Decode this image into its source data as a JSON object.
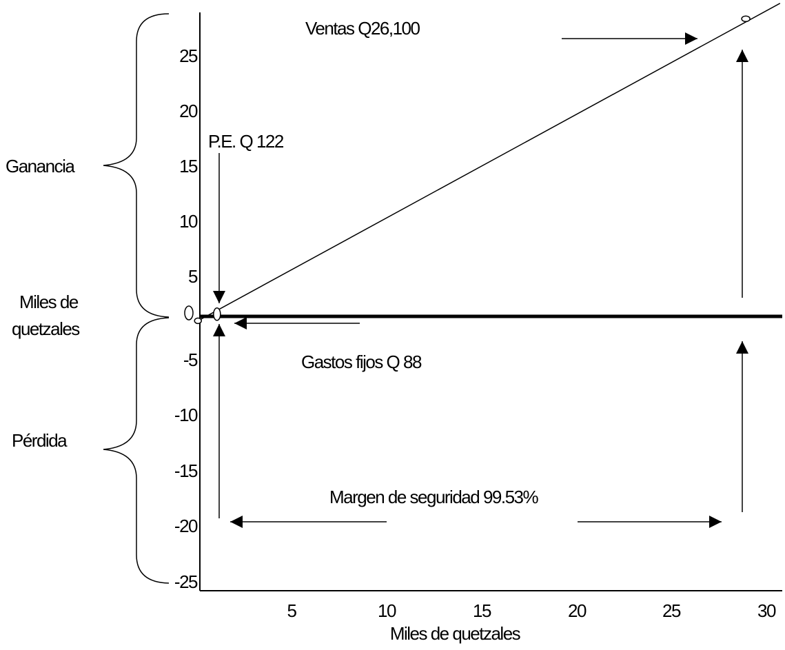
{
  "chart_data": {
    "type": "line",
    "title": "",
    "xlabel": "Miles de quetzales",
    "ylabel": "Miles de quetzales",
    "xlim": [
      0,
      30
    ],
    "ylim": [
      -25,
      28
    ],
    "x_ticks": [
      "5",
      "10",
      "15",
      "20",
      "25",
      "30"
    ],
    "y_ticks": [
      "25",
      "20",
      "15",
      "10",
      "5",
      "0",
      "-5",
      "-10",
      "-15",
      "-20",
      "-25"
    ],
    "grid": false,
    "series": [
      {
        "name": "",
        "points": [
          [
            -0.1,
            -0.4
          ],
          [
            30.5,
            28.3
          ]
        ]
      }
    ],
    "markers": {
      "breakeven": {
        "x": 0.9,
        "y": 0.2
      },
      "sales": {
        "x": 28.7,
        "y": 26.9
      },
      "origin": {
        "x": -0.1,
        "y": -0.4
      }
    },
    "annotations": {
      "ventas": "Ventas Q26,100",
      "pe": "P.E. Q 122",
      "gastos": "Gastos fijos Q 88",
      "margen": "Margen de seguridad 99.53%"
    },
    "brackets": {
      "ganancia": "Ganancia",
      "perdida": "Pérdida",
      "miles_line1": "Miles de",
      "miles_line2": "quetzales"
    }
  }
}
